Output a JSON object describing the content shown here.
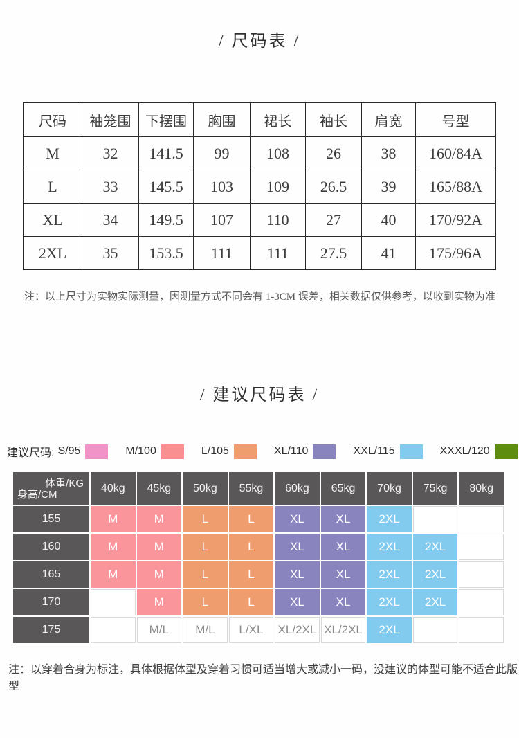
{
  "size_table_section": {
    "title": "/ 尺码表 /",
    "columns": [
      "尺码",
      "袖笼围",
      "下摆围",
      "胸围",
      "裙长",
      "袖长",
      "肩宽",
      "号型"
    ],
    "rows": [
      [
        "M",
        "32",
        "141.5",
        "99",
        "108",
        "26",
        "38",
        "160/84A"
      ],
      [
        "L",
        "33",
        "145.5",
        "103",
        "109",
        "26.5",
        "39",
        "165/88A"
      ],
      [
        "XL",
        "34",
        "149.5",
        "107",
        "110",
        "27",
        "40",
        "170/92A"
      ],
      [
        "2XL",
        "35",
        "153.5",
        "111",
        "111",
        "27.5",
        "41",
        "175/96A"
      ]
    ],
    "note": "注：以上尺寸为实物实际测量，因测量方式不同会有 1-3CM 误差，相关数据仅供参考，以收到实物为准"
  },
  "suggestion_section": {
    "title": "/ 建议尺码表 /",
    "legend": {
      "prefix": "建议尺码:",
      "items": [
        {
          "label": "S/95",
          "color": "#f193c6"
        },
        {
          "label": "M/100",
          "color": "#fa8f92"
        },
        {
          "label": "L/105",
          "color": "#ef9d6f"
        },
        {
          "label": "XL/110",
          "color": "#8a84be"
        },
        {
          "label": "XXL/115",
          "color": "#82cbef"
        },
        {
          "label": "XXXL/120",
          "color": "#5d8c0f"
        }
      ]
    },
    "table": {
      "header_bg": "#595757",
      "corner_top": "体重/KG",
      "corner_bottom": "身高/CM",
      "weights": [
        "40kg",
        "45kg",
        "50kg",
        "55kg",
        "60kg",
        "65kg",
        "70kg",
        "75kg",
        "80kg"
      ],
      "rows": [
        {
          "height": "155",
          "cells": [
            {
              "text": "M",
              "bg": "#f9959b"
            },
            {
              "text": "M",
              "bg": "#f9959b"
            },
            {
              "text": "L",
              "bg": "#ef9d6f"
            },
            {
              "text": "L",
              "bg": "#ef9d6f"
            },
            {
              "text": "XL",
              "bg": "#8a84be"
            },
            {
              "text": "XL",
              "bg": "#8a84be"
            },
            {
              "text": "2XL",
              "bg": "#82cbef"
            },
            {
              "text": "",
              "bg": ""
            },
            {
              "text": "",
              "bg": ""
            }
          ]
        },
        {
          "height": "160",
          "cells": [
            {
              "text": "M",
              "bg": "#f9959b"
            },
            {
              "text": "M",
              "bg": "#f9959b"
            },
            {
              "text": "L",
              "bg": "#ef9d6f"
            },
            {
              "text": "L",
              "bg": "#ef9d6f"
            },
            {
              "text": "XL",
              "bg": "#8a84be"
            },
            {
              "text": "XL",
              "bg": "#8a84be"
            },
            {
              "text": "2XL",
              "bg": "#82cbef"
            },
            {
              "text": "2XL",
              "bg": "#82cbef"
            },
            {
              "text": "",
              "bg": ""
            }
          ]
        },
        {
          "height": "165",
          "cells": [
            {
              "text": "M",
              "bg": "#f9959b"
            },
            {
              "text": "M",
              "bg": "#f9959b"
            },
            {
              "text": "L",
              "bg": "#ef9d6f"
            },
            {
              "text": "L",
              "bg": "#ef9d6f"
            },
            {
              "text": "XL",
              "bg": "#8a84be"
            },
            {
              "text": "XL",
              "bg": "#8a84be"
            },
            {
              "text": "2XL",
              "bg": "#82cbef"
            },
            {
              "text": "2XL",
              "bg": "#82cbef"
            },
            {
              "text": "",
              "bg": ""
            }
          ]
        },
        {
          "height": "170",
          "cells": [
            {
              "text": "",
              "bg": ""
            },
            {
              "text": "M",
              "bg": "#f9959b"
            },
            {
              "text": "L",
              "bg": "#ef9d6f"
            },
            {
              "text": "L",
              "bg": "#ef9d6f"
            },
            {
              "text": "XL",
              "bg": "#8a84be"
            },
            {
              "text": "XL",
              "bg": "#8a84be"
            },
            {
              "text": "2XL",
              "bg": "#82cbef"
            },
            {
              "text": "2XL",
              "bg": "#82cbef"
            },
            {
              "text": "",
              "bg": ""
            }
          ]
        },
        {
          "height": "175",
          "cells": [
            {
              "text": "",
              "bg": ""
            },
            {
              "text": "M/L",
              "bg": ""
            },
            {
              "text": "M/L",
              "bg": ""
            },
            {
              "text": "L/XL",
              "bg": ""
            },
            {
              "text": "XL/2XL",
              "bg": ""
            },
            {
              "text": "XL/2XL",
              "bg": ""
            },
            {
              "text": "2XL",
              "bg": "#82cbef"
            },
            {
              "text": "",
              "bg": ""
            },
            {
              "text": "",
              "bg": ""
            }
          ]
        }
      ]
    },
    "note": "注：以穿着合身为标注，具体根据体型及穿着习惯可适当增大或减小一码，没建议的体型可能不适合此版型"
  }
}
